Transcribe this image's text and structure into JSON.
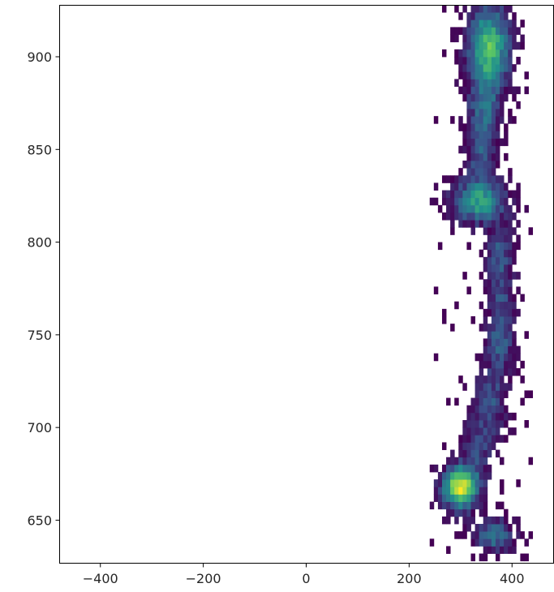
{
  "chart_data": {
    "type": "heatmap",
    "title": "",
    "xlabel": "",
    "ylabel": "",
    "xlim": [
      -480,
      480
    ],
    "ylim": [
      627,
      928
    ],
    "x_ticks": [
      -400,
      -200,
      0,
      200,
      400
    ],
    "y_ticks": [
      650,
      700,
      750,
      800,
      850,
      900
    ],
    "grid": false,
    "legend": "none",
    "colormap": "viridis",
    "colormap_stops": [
      "#440154",
      "#3b528b",
      "#21918c",
      "#5ec962",
      "#fde725"
    ],
    "bin_size": [
      8,
      4
    ],
    "density_clusters": [
      {
        "x": 355,
        "y": 905,
        "sx": 28,
        "sy": 16,
        "peak": 0.75
      },
      {
        "x": 345,
        "y": 870,
        "sx": 22,
        "sy": 12,
        "peak": 0.35
      },
      {
        "x": 340,
        "y": 845,
        "sx": 20,
        "sy": 10,
        "peak": 0.3
      },
      {
        "x": 335,
        "y": 822,
        "sx": 36,
        "sy": 8,
        "peak": 0.6
      },
      {
        "x": 375,
        "y": 795,
        "sx": 18,
        "sy": 10,
        "peak": 0.3
      },
      {
        "x": 380,
        "y": 770,
        "sx": 18,
        "sy": 12,
        "peak": 0.28
      },
      {
        "x": 375,
        "y": 745,
        "sx": 20,
        "sy": 10,
        "peak": 0.32
      },
      {
        "x": 360,
        "y": 715,
        "sx": 22,
        "sy": 12,
        "peak": 0.3
      },
      {
        "x": 335,
        "y": 690,
        "sx": 20,
        "sy": 10,
        "peak": 0.28
      },
      {
        "x": 300,
        "y": 668,
        "sx": 24,
        "sy": 8,
        "peak": 1.0
      },
      {
        "x": 365,
        "y": 642,
        "sx": 26,
        "sy": 6,
        "peak": 0.45
      }
    ]
  }
}
